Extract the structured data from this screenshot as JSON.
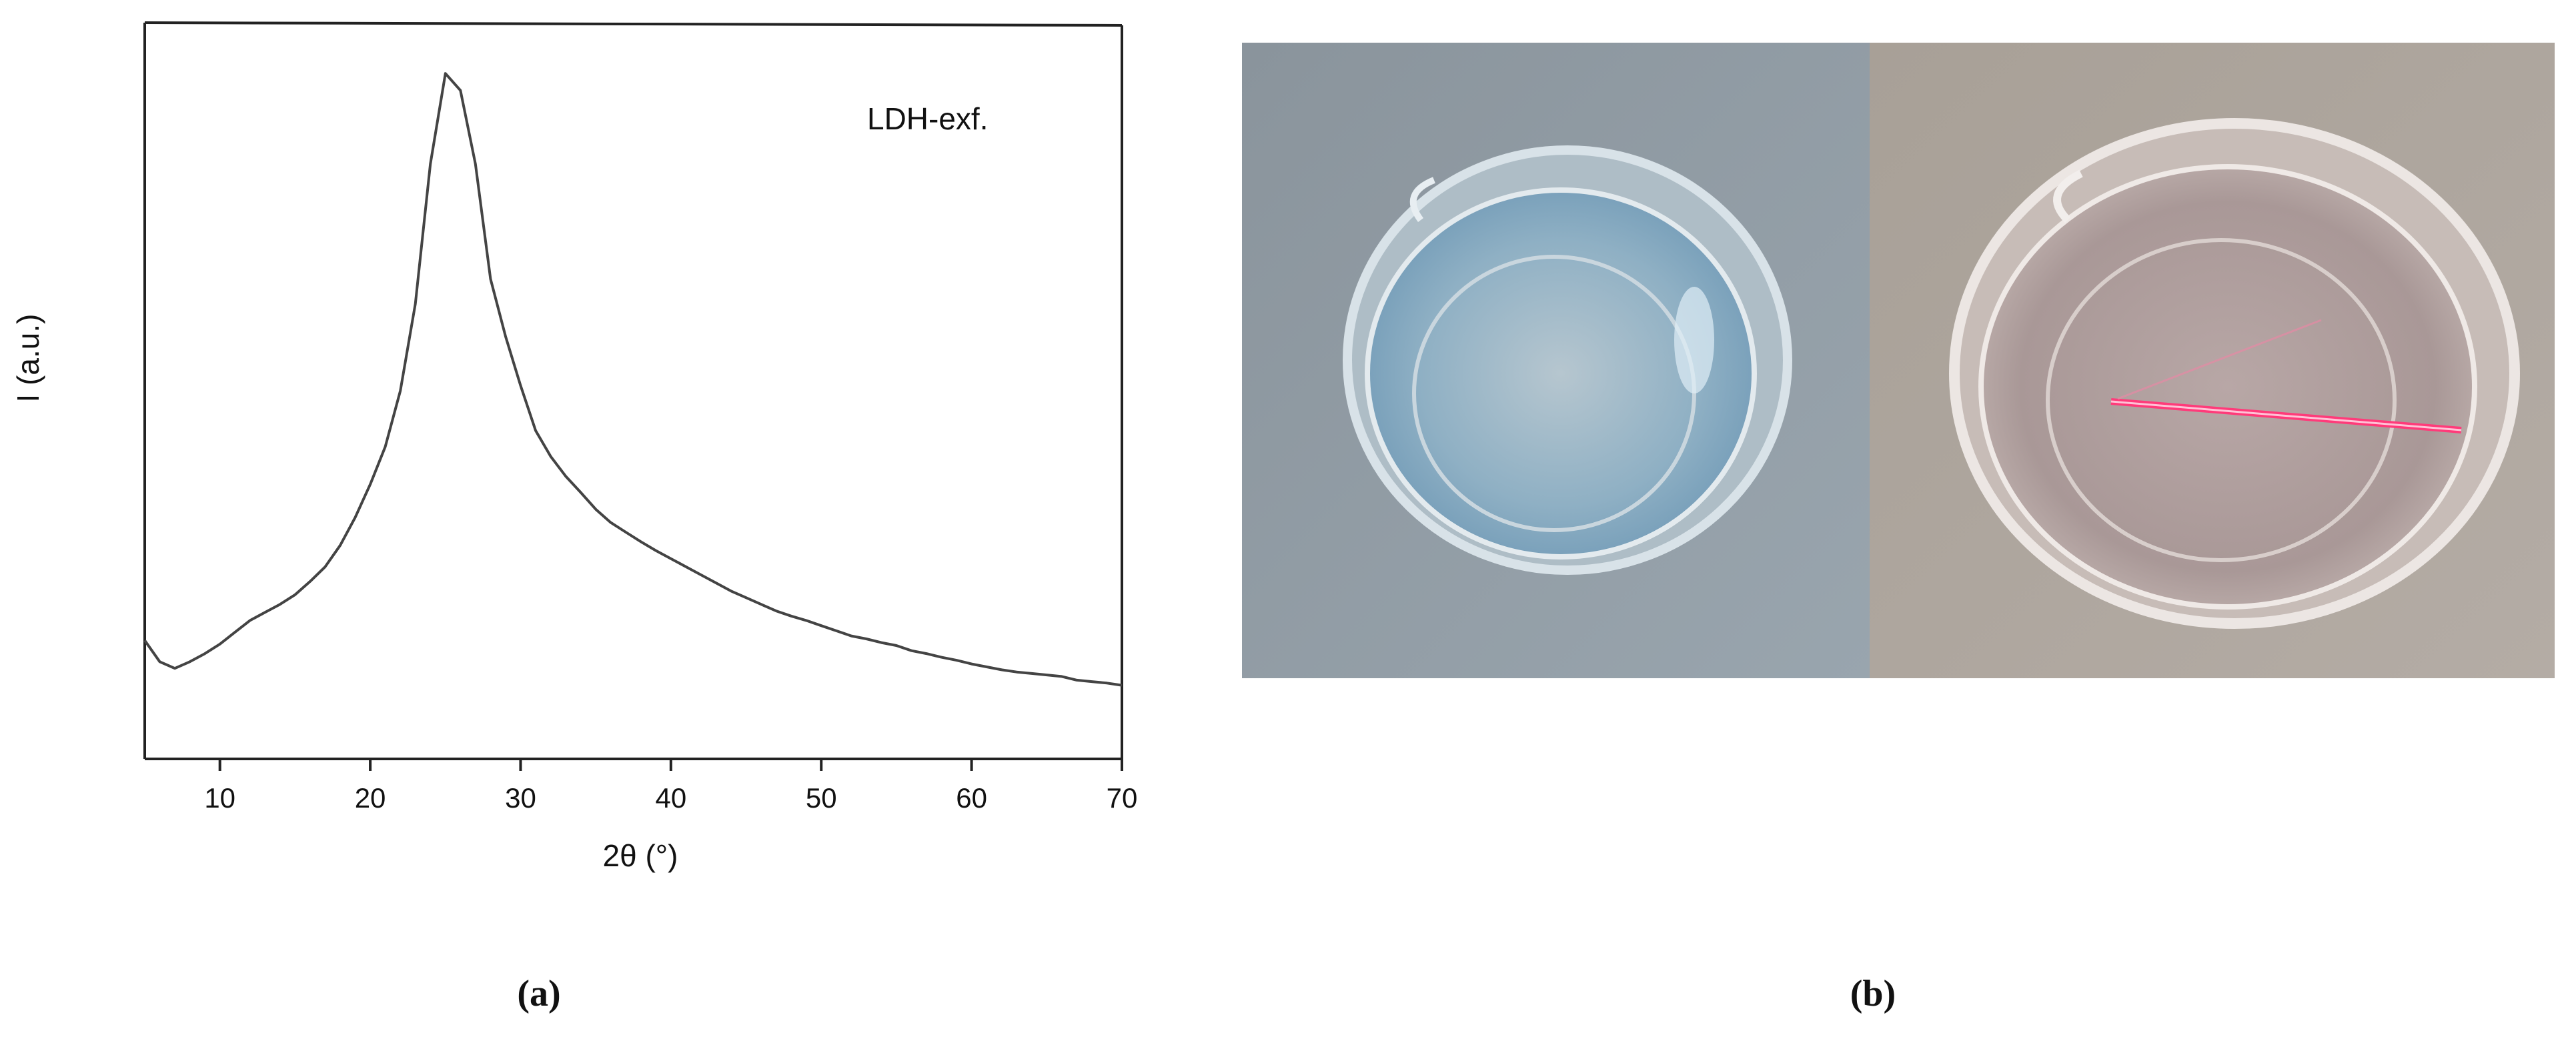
{
  "chart_data": {
    "type": "line",
    "xlabel": "2θ (°)",
    "ylabel": "I (a.u.)",
    "annotation": "LDH-exf.",
    "color": "#444444",
    "x": [
      5,
      6,
      7,
      8,
      9,
      10,
      11,
      12,
      13,
      14,
      15,
      16,
      17,
      18,
      19,
      20,
      21,
      22,
      23,
      24,
      25,
      26,
      27,
      28,
      29,
      30,
      31,
      32,
      33,
      34,
      35,
      36,
      37,
      38,
      39,
      40,
      41,
      42,
      43,
      44,
      45,
      46,
      47,
      48,
      49,
      50,
      51,
      52,
      53,
      54,
      55,
      56,
      57,
      58,
      59,
      60,
      61,
      62,
      63,
      64,
      65,
      66,
      67,
      68,
      69,
      70
    ],
    "values": [
      16.1,
      13.2,
      12.3,
      13.2,
      14.3,
      15.6,
      17.2,
      18.8,
      19.9,
      21.0,
      22.3,
      24.1,
      26.1,
      29.0,
      32.8,
      37.3,
      42.4,
      50.0,
      61.8,
      80.8,
      93.1,
      90.8,
      80.8,
      65.2,
      57.4,
      50.7,
      44.6,
      41.1,
      38.4,
      36.2,
      33.9,
      32.1,
      30.8,
      29.5,
      28.3,
      27.2,
      26.1,
      25.0,
      23.9,
      22.8,
      21.9,
      21.0,
      20.1,
      19.4,
      18.8,
      18.1,
      17.4,
      16.7,
      16.3,
      15.8,
      15.4,
      14.7,
      14.3,
      13.8,
      13.4,
      12.9,
      12.5,
      12.1,
      11.8,
      11.6,
      11.4,
      11.2,
      10.7,
      10.5,
      10.3,
      10.0
    ],
    "xlim": [
      5,
      70
    ],
    "xticks": [
      10,
      20,
      30,
      40,
      50,
      60,
      70
    ],
    "ylim": [
      0,
      100
    ]
  },
  "panel_labels": [
    "(a)",
    "(b)"
  ]
}
